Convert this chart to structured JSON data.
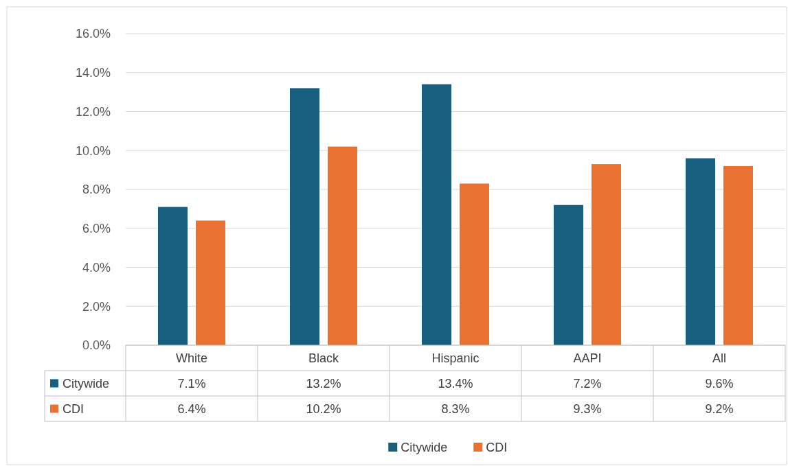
{
  "chart_data": {
    "type": "bar",
    "categories": [
      "White",
      "Black",
      "Hispanic",
      "AAPI",
      "All"
    ],
    "series": [
      {
        "name": "Citywide",
        "color": "#175e7f",
        "values": [
          7.1,
          13.2,
          13.4,
          7.2,
          9.6
        ],
        "value_labels": [
          "7.1%",
          "13.2%",
          "13.4%",
          "7.2%",
          "9.6%"
        ]
      },
      {
        "name": "CDI",
        "color": "#e97132",
        "values": [
          6.4,
          10.2,
          8.3,
          9.3,
          9.2
        ],
        "value_labels": [
          "6.4%",
          "10.2%",
          "8.3%",
          "9.3%",
          "9.2%"
        ]
      }
    ],
    "ylim": [
      0,
      16
    ],
    "yticks": [
      {
        "value": 0,
        "label": "0.0%"
      },
      {
        "value": 2,
        "label": "2.0%"
      },
      {
        "value": 4,
        "label": "4.0%"
      },
      {
        "value": 6,
        "label": "6.0%"
      },
      {
        "value": 8,
        "label": "8.0%"
      },
      {
        "value": 10,
        "label": "10.0%"
      },
      {
        "value": 12,
        "label": "12.0%"
      },
      {
        "value": 14,
        "label": "14.0%"
      },
      {
        "value": 16,
        "label": "16.0%"
      }
    ],
    "grid": "y",
    "legend": "bottom"
  }
}
